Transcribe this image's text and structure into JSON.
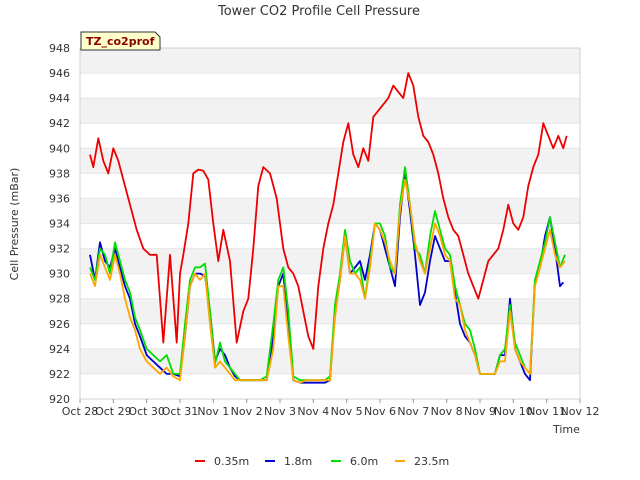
{
  "chart_data": {
    "type": "line",
    "title": "Tower CO2 Profile Cell Pressure",
    "site_label": "TZ_co2prof",
    "xlabel": "Time",
    "ylabel": "Cell Pressure (mBar)",
    "ylim": [
      920,
      948
    ],
    "yticks": [
      920,
      922,
      924,
      926,
      928,
      930,
      932,
      934,
      936,
      938,
      940,
      942,
      944,
      946,
      948
    ],
    "xlim": [
      0,
      15
    ],
    "xtick_labels": [
      "Oct 28",
      "Oct 29",
      "Oct 30",
      "Oct 31",
      "Nov 1",
      "Nov 2",
      "Nov 3",
      "Nov 4",
      "Nov 5",
      "Nov 6",
      "Nov 7",
      "Nov 8",
      "Nov 9",
      "Nov 10",
      "Nov 11",
      "Nov 12"
    ],
    "grid": "horizontal bands",
    "legend_position": "bottom",
    "series": [
      {
        "name": "0.35m",
        "color": "#ee0000",
        "x": [
          0.3,
          0.4,
          0.55,
          0.7,
          0.85,
          1.0,
          1.15,
          1.3,
          1.5,
          1.7,
          1.9,
          2.1,
          2.3,
          2.5,
          2.7,
          2.9,
          3.0,
          3.1,
          3.25,
          3.4,
          3.55,
          3.7,
          3.85,
          4.0,
          4.15,
          4.3,
          4.5,
          4.7,
          4.9,
          5.05,
          5.2,
          5.35,
          5.5,
          5.7,
          5.9,
          6.1,
          6.25,
          6.4,
          6.55,
          6.7,
          6.85,
          7.0,
          7.15,
          7.3,
          7.45,
          7.6,
          7.75,
          7.9,
          8.05,
          8.2,
          8.35,
          8.5,
          8.65,
          8.8,
          8.95,
          9.1,
          9.25,
          9.4,
          9.55,
          9.7,
          9.85,
          10.0,
          10.15,
          10.3,
          10.45,
          10.6,
          10.75,
          10.9,
          11.05,
          11.2,
          11.35,
          11.5,
          11.65,
          11.8,
          11.95,
          12.1,
          12.25,
          12.4,
          12.55,
          12.7,
          12.85,
          13.0,
          13.15,
          13.3,
          13.45,
          13.6,
          13.75,
          13.9,
          14.05,
          14.2,
          14.35,
          14.5,
          14.6
        ],
        "values": [
          939.5,
          938.5,
          940.8,
          939.0,
          938.0,
          940.0,
          939.0,
          937.5,
          935.5,
          933.5,
          932.0,
          931.5,
          931.5,
          924.5,
          931.5,
          924.5,
          930.0,
          931.5,
          934.0,
          938.0,
          938.3,
          938.2,
          937.5,
          934.0,
          931.0,
          933.5,
          931.0,
          924.5,
          927.0,
          928.0,
          932.0,
          937.0,
          938.5,
          938.0,
          936.0,
          932.0,
          930.5,
          930.0,
          929.0,
          927.0,
          925.0,
          924.0,
          929.0,
          932.0,
          934.0,
          935.5,
          938.0,
          940.5,
          942.0,
          939.5,
          938.5,
          940.0,
          939.0,
          942.5,
          943.0,
          943.5,
          944.0,
          945.0,
          944.5,
          944.0,
          946.0,
          945.0,
          942.5,
          941.0,
          940.5,
          939.5,
          938.0,
          936.0,
          934.5,
          933.5,
          933.0,
          931.5,
          930.0,
          929.0,
          928.0,
          929.5,
          931.0,
          931.5,
          932.0,
          933.5,
          935.5,
          934.0,
          933.5,
          934.5,
          937.0,
          938.5,
          939.5,
          942.0,
          941.0,
          940.0,
          941.0,
          940.0,
          941.0
        ]
      },
      {
        "name": "1.8m",
        "color": "#0000cc",
        "x": [
          0.3,
          0.45,
          0.6,
          0.75,
          0.9,
          1.05,
          1.2,
          1.35,
          1.5,
          1.65,
          1.8,
          2.0,
          2.2,
          2.4,
          2.6,
          2.8,
          3.0,
          3.15,
          3.3,
          3.45,
          3.6,
          3.75,
          3.9,
          4.05,
          4.2,
          4.35,
          4.5,
          4.65,
          4.8,
          5.0,
          5.2,
          5.4,
          5.6,
          5.8,
          5.95,
          6.1,
          6.25,
          6.4,
          6.6,
          6.8,
          7.0,
          7.2,
          7.35,
          7.5,
          7.65,
          7.8,
          7.95,
          8.1,
          8.25,
          8.4,
          8.55,
          8.7,
          8.85,
          9.0,
          9.15,
          9.3,
          9.45,
          9.6,
          9.75,
          9.9,
          10.05,
          10.2,
          10.35,
          10.5,
          10.65,
          10.8,
          10.95,
          11.1,
          11.25,
          11.4,
          11.55,
          11.7,
          11.85,
          12.0,
          12.15,
          12.3,
          12.45,
          12.6,
          12.75,
          12.9,
          13.05,
          13.2,
          13.35,
          13.5,
          13.65,
          13.8,
          13.95,
          14.1,
          14.25,
          14.4,
          14.5
        ],
        "values": [
          931.5,
          929.5,
          932.5,
          931.0,
          930.5,
          932.0,
          930.5,
          929.0,
          928.0,
          926.0,
          925.0,
          923.5,
          923.0,
          922.5,
          922.0,
          922.0,
          921.8,
          925.0,
          929.0,
          930.0,
          930.0,
          929.8,
          927.0,
          923.0,
          924.0,
          923.5,
          922.5,
          921.8,
          921.5,
          921.5,
          921.5,
          921.5,
          921.5,
          925.0,
          929.0,
          930.0,
          926.0,
          921.5,
          921.3,
          921.3,
          921.3,
          921.3,
          921.3,
          921.5,
          927.0,
          929.5,
          933.0,
          930.0,
          930.5,
          931.0,
          929.5,
          931.5,
          934.0,
          933.5,
          932.0,
          930.5,
          929.0,
          934.5,
          938.0,
          935.0,
          931.5,
          927.5,
          928.5,
          931.0,
          933.0,
          932.0,
          931.0,
          931.0,
          928.5,
          926.0,
          925.0,
          924.5,
          923.5,
          922.0,
          922.0,
          922.0,
          922.0,
          923.5,
          923.5,
          928.0,
          924.0,
          923.0,
          922.0,
          921.5,
          929.5,
          930.5,
          933.0,
          934.5,
          932.0,
          929.0,
          929.3
        ]
      },
      {
        "name": "6.0m",
        "color": "#00dd00",
        "x": [
          0.3,
          0.45,
          0.6,
          0.75,
          0.9,
          1.05,
          1.2,
          1.35,
          1.5,
          1.65,
          1.8,
          2.0,
          2.2,
          2.4,
          2.6,
          2.8,
          3.0,
          3.15,
          3.3,
          3.45,
          3.6,
          3.75,
          3.9,
          4.05,
          4.2,
          4.35,
          4.5,
          4.65,
          4.8,
          5.0,
          5.2,
          5.4,
          5.6,
          5.8,
          5.95,
          6.1,
          6.25,
          6.4,
          6.6,
          6.8,
          7.0,
          7.2,
          7.35,
          7.5,
          7.65,
          7.8,
          7.95,
          8.1,
          8.25,
          8.4,
          8.55,
          8.7,
          8.85,
          9.0,
          9.15,
          9.3,
          9.45,
          9.6,
          9.75,
          9.9,
          10.05,
          10.2,
          10.35,
          10.5,
          10.65,
          10.8,
          10.95,
          11.1,
          11.25,
          11.4,
          11.55,
          11.7,
          11.85,
          12.0,
          12.15,
          12.3,
          12.45,
          12.6,
          12.75,
          12.9,
          13.05,
          13.2,
          13.35,
          13.5,
          13.65,
          13.8,
          13.95,
          14.1,
          14.25,
          14.4,
          14.55
        ],
        "values": [
          930.5,
          929.5,
          932.0,
          931.5,
          930.0,
          932.5,
          931.0,
          929.5,
          928.5,
          926.5,
          925.5,
          924.0,
          923.5,
          923.0,
          923.5,
          922.0,
          922.0,
          926.0,
          929.5,
          930.5,
          930.5,
          930.8,
          927.0,
          922.8,
          924.5,
          923.0,
          922.5,
          922.0,
          921.5,
          921.5,
          921.5,
          921.5,
          921.8,
          926.0,
          929.5,
          930.5,
          927.0,
          921.8,
          921.5,
          921.5,
          921.5,
          921.5,
          921.5,
          921.8,
          927.5,
          930.0,
          933.5,
          931.0,
          930.0,
          930.5,
          928.0,
          931.0,
          934.0,
          934.0,
          933.0,
          930.5,
          930.0,
          935.5,
          938.5,
          935.5,
          932.0,
          931.5,
          930.0,
          933.0,
          935.0,
          933.5,
          932.0,
          931.5,
          929.0,
          927.5,
          926.0,
          925.5,
          924.0,
          922.0,
          922.0,
          922.0,
          922.0,
          923.5,
          924.0,
          927.5,
          924.5,
          923.5,
          922.5,
          922.0,
          929.5,
          931.0,
          932.5,
          934.5,
          932.5,
          930.5,
          931.5
        ]
      },
      {
        "name": "23.5m",
        "color": "#ffa500",
        "x": [
          0.3,
          0.45,
          0.6,
          0.75,
          0.9,
          1.05,
          1.2,
          1.35,
          1.5,
          1.65,
          1.8,
          2.0,
          2.2,
          2.4,
          2.6,
          2.8,
          3.0,
          3.15,
          3.3,
          3.45,
          3.6,
          3.75,
          3.9,
          4.05,
          4.2,
          4.35,
          4.5,
          4.65,
          4.8,
          5.0,
          5.2,
          5.4,
          5.6,
          5.8,
          5.95,
          6.1,
          6.25,
          6.4,
          6.6,
          6.8,
          7.0,
          7.2,
          7.35,
          7.5,
          7.65,
          7.8,
          7.95,
          8.1,
          8.25,
          8.4,
          8.55,
          8.7,
          8.85,
          9.0,
          9.15,
          9.3,
          9.45,
          9.6,
          9.75,
          9.9,
          10.05,
          10.2,
          10.35,
          10.5,
          10.65,
          10.8,
          10.95,
          11.1,
          11.25,
          11.4,
          11.55,
          11.7,
          11.85,
          12.0,
          12.15,
          12.3,
          12.45,
          12.6,
          12.75,
          12.9,
          13.05,
          13.2,
          13.35,
          13.5,
          13.65,
          13.8,
          13.95,
          14.1,
          14.25,
          14.4,
          14.55
        ],
        "values": [
          930.0,
          929.0,
          931.5,
          930.5,
          929.5,
          931.5,
          930.0,
          928.0,
          926.5,
          925.5,
          924.0,
          923.0,
          922.5,
          922.0,
          922.5,
          921.8,
          921.5,
          925.0,
          929.0,
          930.0,
          929.5,
          930.0,
          926.0,
          922.5,
          923.0,
          922.5,
          922.0,
          921.5,
          921.5,
          921.5,
          921.5,
          921.5,
          921.5,
          924.0,
          929.0,
          929.0,
          925.0,
          921.5,
          921.3,
          921.5,
          921.5,
          921.5,
          921.5,
          921.5,
          926.5,
          929.5,
          933.0,
          930.0,
          930.0,
          929.5,
          928.0,
          930.5,
          934.0,
          933.5,
          932.5,
          931.0,
          930.0,
          935.0,
          937.5,
          935.5,
          932.5,
          931.0,
          930.0,
          932.0,
          934.0,
          933.0,
          931.5,
          931.0,
          928.0,
          927.5,
          925.5,
          924.5,
          923.5,
          922.0,
          922.0,
          922.0,
          922.0,
          923.0,
          923.0,
          927.0,
          924.0,
          923.0,
          922.5,
          922.0,
          929.0,
          930.5,
          932.0,
          933.5,
          931.5,
          930.5,
          931.0
        ]
      }
    ]
  }
}
